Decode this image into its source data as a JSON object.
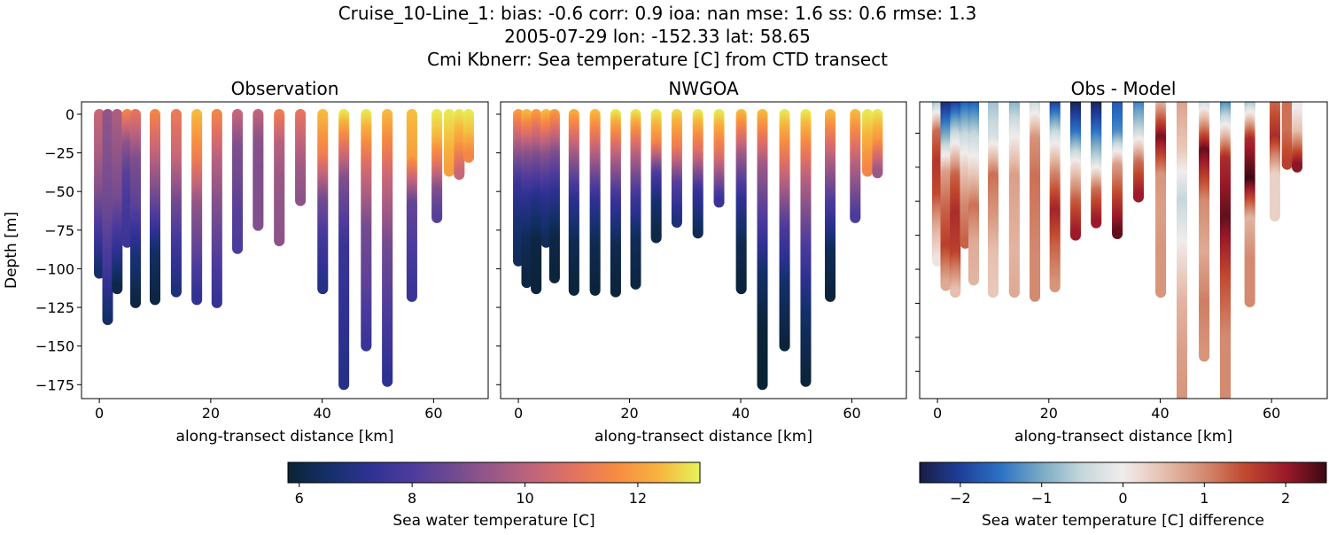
{
  "title_lines": [
    "Cruise_10-Line_1: bias: -0.6  corr: 0.9  ioa: nan  mse: 1.6  ss: 0.6  rmse: 1.3",
    "2005-07-29 lon: -152.33 lat: 58.65",
    "Cmi Kbnerr: Sea temperature [C] from CTD transect"
  ],
  "chart_data": [
    {
      "type": "scatter",
      "title": "Observation",
      "xlabel": "along-transect distance [km]",
      "ylabel": "Depth [m]",
      "xlim": [
        -3.2,
        69.8
      ],
      "ylim": [
        -184,
        8
      ],
      "xticks": [
        0,
        20,
        40,
        60
      ],
      "yticks": [
        0,
        -25,
        -50,
        -75,
        -100,
        -125,
        -150,
        -175
      ],
      "colormap": "thermal",
      "clim": [
        5.8,
        13.1
      ],
      "casts": [
        {
          "distance_km": 0,
          "bottom_depth_m": -103,
          "values": [
            10.3,
            9.8,
            9.0,
            7.8,
            6.5
          ]
        },
        {
          "distance_km": 1.5,
          "bottom_depth_m": -133,
          "values": [
            9.3,
            9.0,
            8.6,
            7.8,
            6.5
          ]
        },
        {
          "distance_km": 3.2,
          "bottom_depth_m": -113,
          "values": [
            9.8,
            9.3,
            8.8,
            7.5,
            6.1
          ]
        },
        {
          "distance_km": 5.0,
          "bottom_depth_m": -83,
          "values": [
            11.5,
            9.2,
            8.2,
            7.8,
            7.6
          ]
        },
        {
          "distance_km": 6.5,
          "bottom_depth_m": -122,
          "values": [
            11.0,
            9.0,
            8.3,
            6.8,
            6.0
          ]
        },
        {
          "distance_km": 10.0,
          "bottom_depth_m": -120,
          "values": [
            11.5,
            10.0,
            8.5,
            6.5,
            6.0
          ]
        },
        {
          "distance_km": 13.8,
          "bottom_depth_m": -115,
          "values": [
            11.2,
            10.3,
            8.8,
            7.7,
            6.8
          ]
        },
        {
          "distance_km": 17.5,
          "bottom_depth_m": -120,
          "values": [
            12.5,
            11.3,
            9.3,
            8.4,
            7.3
          ]
        },
        {
          "distance_km": 21.1,
          "bottom_depth_m": -122,
          "values": [
            11.5,
            10.0,
            9.0,
            8.2,
            7.4
          ]
        },
        {
          "distance_km": 24.8,
          "bottom_depth_m": -87,
          "values": [
            10.3,
            9.0,
            8.7,
            8.2,
            8.0
          ]
        },
        {
          "distance_km": 28.5,
          "bottom_depth_m": -72,
          "values": [
            10.2,
            9.2,
            9.0,
            9.0,
            9.0
          ]
        },
        {
          "distance_km": 32.3,
          "bottom_depth_m": -82,
          "values": [
            11.3,
            10.0,
            9.5,
            9.3,
            9.2
          ]
        },
        {
          "distance_km": 36.1,
          "bottom_depth_m": -56,
          "values": [
            11.0,
            10.2,
            9.5,
            9.2
          ]
        },
        {
          "distance_km": 40.1,
          "bottom_depth_m": -113,
          "values": [
            12.5,
            11.3,
            8.8,
            7.7,
            7.0
          ]
        },
        {
          "distance_km": 43.9,
          "bottom_depth_m": -175,
          "values": [
            13.0,
            9.0,
            7.5,
            7.3,
            7.0
          ]
        },
        {
          "distance_km": 47.9,
          "bottom_depth_m": -150,
          "values": [
            13.0,
            10.5,
            8.8,
            8.3,
            7.5
          ]
        },
        {
          "distance_km": 51.7,
          "bottom_depth_m": -173,
          "values": [
            12.5,
            10.3,
            8.8,
            8.0,
            7.2
          ]
        },
        {
          "distance_km": 56.1,
          "bottom_depth_m": -118,
          "values": [
            12.5,
            12.0,
            8.5,
            8.0,
            7.5
          ]
        },
        {
          "distance_km": 60.6,
          "bottom_depth_m": -67,
          "values": [
            13.0,
            12.4,
            11.0,
            9.0,
            8.2
          ]
        },
        {
          "distance_km": 62.8,
          "bottom_depth_m": -37,
          "values": [
            13.0,
            12.5,
            12.0
          ]
        },
        {
          "distance_km": 64.6,
          "bottom_depth_m": -39,
          "values": [
            13.0,
            12.0,
            10.3
          ]
        },
        {
          "distance_km": 66.3,
          "bottom_depth_m": -28,
          "values": [
            13.0,
            12.5,
            11.5
          ]
        }
      ]
    },
    {
      "type": "scatter",
      "title": "NWGOA",
      "xlabel": "along-transect distance [km]",
      "xlim": [
        -3.2,
        69.8
      ],
      "ylim": [
        -184,
        8
      ],
      "xticks": [
        0,
        20,
        40,
        60
      ],
      "colormap": "thermal",
      "clim": [
        5.8,
        13.1
      ],
      "casts": [
        {
          "distance_km": 0,
          "bottom_depth_m": -95,
          "values": [
            12.0,
            9.5,
            7.5,
            6.7,
            6.3
          ]
        },
        {
          "distance_km": 1.5,
          "bottom_depth_m": -109,
          "values": [
            12.5,
            9.2,
            7.3,
            6.3,
            6.0
          ]
        },
        {
          "distance_km": 3.2,
          "bottom_depth_m": -113,
          "values": [
            12.0,
            9.0,
            7.0,
            6.0,
            5.9
          ]
        },
        {
          "distance_km": 5.0,
          "bottom_depth_m": -83,
          "values": [
            12.5,
            9.2,
            7.2,
            6.3
          ]
        },
        {
          "distance_km": 6.5,
          "bottom_depth_m": -106,
          "values": [
            12.0,
            9.0,
            7.2,
            6.1,
            5.9
          ]
        },
        {
          "distance_km": 10.0,
          "bottom_depth_m": -114,
          "values": [
            12.3,
            9.5,
            7.2,
            6.2,
            5.9
          ]
        },
        {
          "distance_km": 13.8,
          "bottom_depth_m": -114,
          "values": [
            12.5,
            9.8,
            7.3,
            6.2,
            5.9
          ]
        },
        {
          "distance_km": 17.5,
          "bottom_depth_m": -115,
          "values": [
            13.0,
            10.0,
            7.5,
            6.2,
            5.9
          ]
        },
        {
          "distance_km": 21.1,
          "bottom_depth_m": -110,
          "values": [
            13.0,
            10.0,
            7.7,
            6.3,
            6.0
          ]
        },
        {
          "distance_km": 24.8,
          "bottom_depth_m": -80,
          "values": [
            13.0,
            11.5,
            8.0,
            6.5,
            6.1
          ]
        },
        {
          "distance_km": 28.5,
          "bottom_depth_m": -70,
          "values": [
            12.8,
            11.2,
            8.2,
            6.8
          ]
        },
        {
          "distance_km": 32.3,
          "bottom_depth_m": -77,
          "values": [
            13.0,
            10.8,
            7.5,
            6.3
          ]
        },
        {
          "distance_km": 36.1,
          "bottom_depth_m": -57,
          "values": [
            13.0,
            10.8,
            7.5
          ]
        },
        {
          "distance_km": 40.1,
          "bottom_depth_m": -113,
          "values": [
            12.5,
            9.5,
            7.3,
            6.2,
            5.9
          ]
        },
        {
          "distance_km": 43.9,
          "bottom_depth_m": -175,
          "values": [
            12.5,
            9.5,
            8.0,
            6.5,
            5.9,
            5.8
          ]
        },
        {
          "distance_km": 47.9,
          "bottom_depth_m": -150,
          "values": [
            13.0,
            10.5,
            8.0,
            6.5,
            5.9
          ]
        },
        {
          "distance_km": 51.7,
          "bottom_depth_m": -173,
          "values": [
            13.0,
            10.0,
            8.0,
            6.5,
            5.9
          ]
        },
        {
          "distance_km": 56.1,
          "bottom_depth_m": -118,
          "values": [
            12.5,
            10.0,
            8.0,
            6.3,
            5.9
          ]
        },
        {
          "distance_km": 60.6,
          "bottom_depth_m": -67,
          "values": [
            12.5,
            10.0,
            8.0
          ]
        },
        {
          "distance_km": 62.8,
          "bottom_depth_m": -37,
          "values": [
            13.0,
            11.5
          ]
        },
        {
          "distance_km": 64.6,
          "bottom_depth_m": -38,
          "values": [
            13.0,
            11.8,
            9.5
          ]
        }
      ]
    },
    {
      "type": "scatter",
      "title": "Obs - Model",
      "xlabel": "along-transect distance [km]",
      "xlim": [
        -3.2,
        70
      ],
      "ylim": [
        -220,
        -2
      ],
      "xticks": [
        0,
        20,
        40,
        60
      ],
      "yticks": [
        -25,
        -50,
        -75,
        -100,
        -125,
        -150,
        -175,
        -200
      ],
      "yticklabels": false,
      "colormap": "balance",
      "clim": [
        -2.5,
        2.5
      ],
      "casts": [
        {
          "distance_km": 0,
          "bottom_depth_m": -119,
          "values": [
            -1.0,
            1.2,
            1.7,
            1.5,
            0.7,
            0.1
          ]
        },
        {
          "distance_km": 1.5,
          "bottom_depth_m": -137,
          "values": [
            -2.4,
            -1.0,
            0.8,
            1.3,
            1.6,
            0.7
          ]
        },
        {
          "distance_km": 3.2,
          "bottom_depth_m": -142,
          "values": [
            -2.2,
            -0.3,
            1.3,
            1.8,
            1.6,
            0.5
          ]
        },
        {
          "distance_km": 5.0,
          "bottom_depth_m": -106,
          "values": [
            -1.8,
            -0.5,
            0.4,
            1.0,
            1.3
          ]
        },
        {
          "distance_km": 6.5,
          "bottom_depth_m": -133,
          "values": [
            -1.8,
            -0.5,
            0.3,
            1.2,
            0.7,
            0.6
          ]
        },
        {
          "distance_km": 10.0,
          "bottom_depth_m": -142,
          "values": [
            -0.8,
            -0.3,
            1.2,
            0.9,
            0.5,
            0.4
          ]
        },
        {
          "distance_km": 13.8,
          "bottom_depth_m": -142,
          "values": [
            -1.0,
            0.0,
            0.8,
            0.7,
            0.6,
            0.7
          ]
        },
        {
          "distance_km": 17.5,
          "bottom_depth_m": -145,
          "values": [
            -0.6,
            0.9,
            1.2,
            1.1,
            1.0,
            1.0
          ]
        },
        {
          "distance_km": 21.1,
          "bottom_depth_m": -138,
          "values": [
            -2.2,
            -0.3,
            1.0,
            1.9,
            1.3,
            0.9
          ]
        },
        {
          "distance_km": 24.8,
          "bottom_depth_m": -100,
          "values": [
            -2.5,
            -1.5,
            0.2,
            1.3,
            2.0
          ]
        },
        {
          "distance_km": 28.5,
          "bottom_depth_m": -91,
          "values": [
            -2.5,
            -1.6,
            -0.5,
            1.2,
            2.0
          ]
        },
        {
          "distance_km": 32.3,
          "bottom_depth_m": -99,
          "values": [
            -1.8,
            -1.3,
            0.8,
            1.6,
            2.3
          ]
        },
        {
          "distance_km": 36.1,
          "bottom_depth_m": -72,
          "values": [
            -1.5,
            -0.5,
            1.2,
            2.0
          ]
        },
        {
          "distance_km": 40.1,
          "bottom_depth_m": -142,
          "values": [
            0.4,
            2.2,
            0.9,
            0.8,
            0.9,
            0.9
          ]
        },
        {
          "distance_km": 43.9,
          "bottom_depth_m": -225,
          "values": [
            0.8,
            0.4,
            -0.5,
            0.1,
            0.6,
            0.8,
            0.9
          ]
        },
        {
          "distance_km": 47.9,
          "bottom_depth_m": -189,
          "values": [
            -0.6,
            2.3,
            1.0,
            0.7,
            1.1,
            0.9
          ]
        },
        {
          "distance_km": 51.7,
          "bottom_depth_m": -220,
          "values": [
            -1.5,
            1.8,
            2.3,
            1.5,
            1.0,
            1.0
          ]
        },
        {
          "distance_km": 56.1,
          "bottom_depth_m": -149,
          "values": [
            -1.0,
            1.8,
            2.5,
            0.6,
            1.0,
            1.0
          ]
        },
        {
          "distance_km": 60.6,
          "bottom_depth_m": -86,
          "values": [
            1.2,
            1.8,
            0.3,
            0.3
          ]
        },
        {
          "distance_km": 62.8,
          "bottom_depth_m": -48,
          "values": [
            1.2,
            1.2,
            1.6
          ]
        },
        {
          "distance_km": 64.6,
          "bottom_depth_m": -50,
          "values": [
            -0.2,
            0.5,
            2.1
          ]
        }
      ]
    }
  ],
  "colorbars": [
    {
      "label": "Sea water temperature [C]",
      "colormap": "thermal",
      "range": [
        5.8,
        13.1
      ],
      "ticks": [
        6,
        8,
        10,
        12
      ],
      "ticklabels": [
        "6",
        "8",
        "10",
        "12"
      ]
    },
    {
      "label": "Sea water temperature [C] difference",
      "colormap": "balance",
      "range": [
        -2.5,
        2.5
      ],
      "ticks": [
        -2,
        -1,
        0,
        1,
        2
      ],
      "ticklabels": [
        "−2",
        "−1",
        "0",
        "1",
        "2"
      ]
    }
  ],
  "colormaps": {
    "thermal": [
      "#0b2233",
      "#14306a",
      "#2f3193",
      "#4c3b9c",
      "#704a91",
      "#9a5886",
      "#c3657a",
      "#e4735f",
      "#f78c42",
      "#f7b43e",
      "#e6f457"
    ],
    "balance": [
      "#181c43",
      "#1f3f9a",
      "#2c72c4",
      "#7aaac4",
      "#c6d8dc",
      "#f1ecec",
      "#e6bfae",
      "#d38a70",
      "#c1492f",
      "#9c1a2a",
      "#3c0912"
    ]
  }
}
